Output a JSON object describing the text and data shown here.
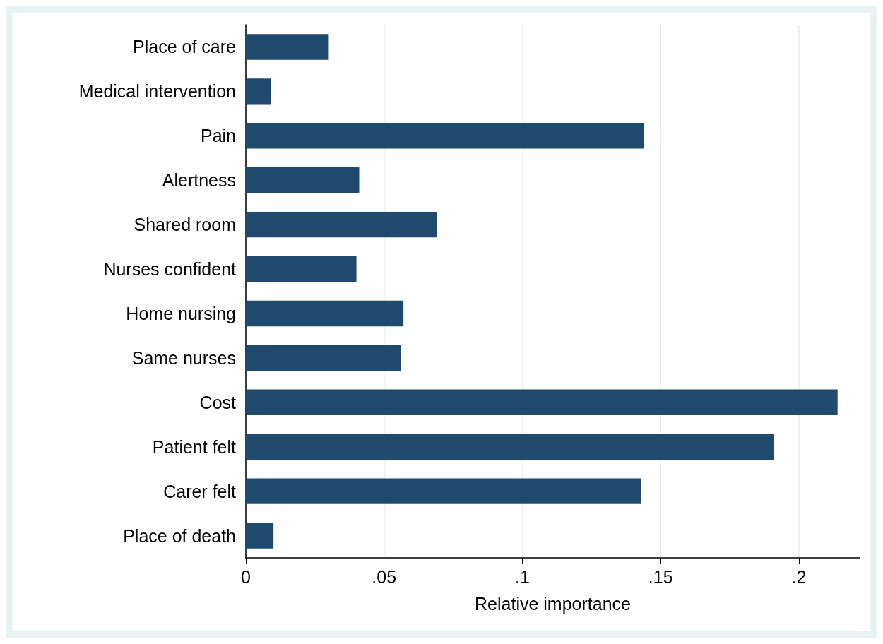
{
  "chart_data": {
    "type": "bar",
    "orientation": "horizontal",
    "xlabel": "Relative importance",
    "categories": [
      "Place of care",
      "Medical intervention",
      "Pain",
      "Alertness",
      "Shared room",
      "Nurses confident",
      "Home nursing",
      "Same nurses",
      "Cost",
      "Patient felt",
      "Carer felt",
      "Place of death"
    ],
    "values": [
      0.03,
      0.009,
      0.144,
      0.041,
      0.069,
      0.04,
      0.057,
      0.056,
      0.214,
      0.191,
      0.143,
      0.01
    ],
    "color": "#1f4a6e",
    "xlim": [
      0,
      0.222
    ],
    "xticks": [
      0,
      {
        "value": 0.05,
        "label": ".05"
      },
      {
        "value": 0.1,
        "label": ".1"
      },
      {
        "value": 0.15,
        "label": ".15"
      },
      {
        "value": 0.2,
        "label": ".2"
      }
    ],
    "grid": "x"
  }
}
